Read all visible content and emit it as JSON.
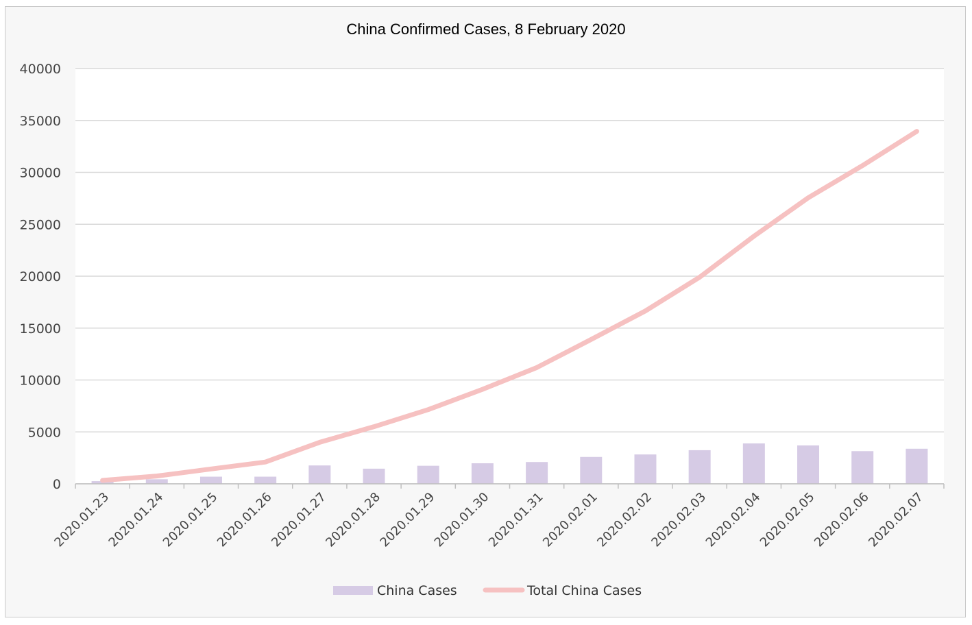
{
  "chart_data": {
    "type": "bar+line",
    "title": "China Confirmed Cases, 8 February 2020",
    "categories": [
      "2020.01.23",
      "2020.01.24",
      "2020.01.25",
      "2020.01.26",
      "2020.01.27",
      "2020.01.28",
      "2020.01.29",
      "2020.01.30",
      "2020.01.31",
      "2020.02.01",
      "2020.02.02",
      "2020.02.03",
      "2020.02.04",
      "2020.02.05",
      "2020.02.06",
      "2020.02.07"
    ],
    "series": [
      {
        "name": "China Cases",
        "type": "bar",
        "color": "#d6cbe5",
        "values": [
          260,
          440,
          690,
          690,
          1770,
          1460,
          1740,
          1980,
          2100,
          2590,
          2830,
          3240,
          3890,
          3700,
          3150,
          3380
        ]
      },
      {
        "name": "Total China Cases",
        "type": "line",
        "color": "#f6c1c1",
        "values": [
          330,
          750,
          1430,
          2100,
          4000,
          5500,
          7150,
          9100,
          11200,
          13900,
          16650,
          19900,
          23850,
          27550,
          30650,
          33950
        ]
      }
    ],
    "ylim": [
      0,
      40000
    ],
    "yticks": [
      "0",
      "5000",
      "10000",
      "15000",
      "20000",
      "25000",
      "30000",
      "35000",
      "40000"
    ],
    "grid": true,
    "legend": "bottom"
  }
}
